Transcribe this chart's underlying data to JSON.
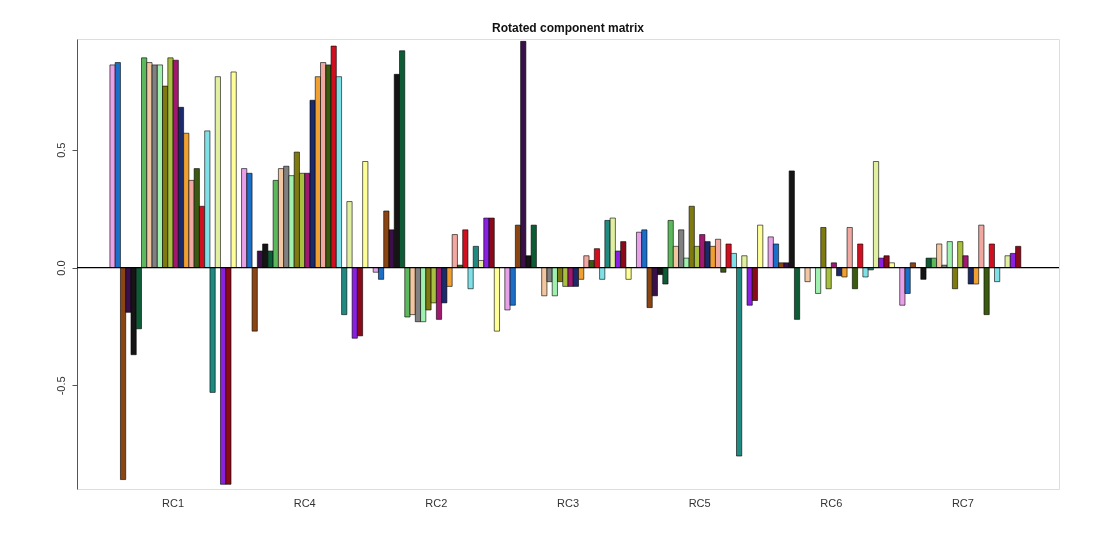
{
  "chart_data": {
    "type": "bar",
    "title": "Rotated component matrix",
    "categories": [
      "RC1",
      "RC4",
      "RC2",
      "RC3",
      "RC5",
      "RC6",
      "RC7"
    ],
    "series": [
      {
        "color": "#e8a0e8",
        "values": [
          0.86,
          0.42,
          -0.02,
          -0.18,
          0.15,
          0.13,
          -0.16
        ]
      },
      {
        "color": "#1c6fc8",
        "values": [
          0.87,
          0.4,
          -0.05,
          -0.16,
          0.16,
          0.1,
          -0.11
        ]
      },
      {
        "color": "#8b4513",
        "values": [
          -0.9,
          -0.27,
          0.24,
          0.18,
          -0.17,
          0.02,
          0.02
        ]
      },
      {
        "color": "#3a0f4a",
        "values": [
          -0.19,
          0.07,
          0.16,
          0.96,
          -0.12,
          0.02,
          0.0
        ]
      },
      {
        "color": "#151515",
        "values": [
          -0.37,
          0.1,
          0.82,
          0.05,
          -0.03,
          0.41,
          -0.05
        ]
      },
      {
        "color": "#0d5c36",
        "values": [
          -0.26,
          0.07,
          0.92,
          0.18,
          -0.07,
          -0.22,
          0.04
        ]
      },
      {
        "color": "#5cb85c",
        "values": [
          0.89,
          0.37,
          -0.21,
          0.0,
          0.2,
          0.0,
          0.04
        ]
      },
      {
        "color": "#f2c6a0",
        "values": [
          0.87,
          0.42,
          -0.2,
          -0.12,
          0.09,
          -0.06,
          0.1
        ]
      },
      {
        "color": "#808080",
        "values": [
          0.86,
          0.43,
          -0.23,
          -0.06,
          0.16,
          0.0,
          0.01
        ]
      },
      {
        "color": "#a0f0b0",
        "values": [
          0.86,
          0.39,
          -0.23,
          -0.12,
          0.04,
          -0.11,
          0.11
        ]
      },
      {
        "color": "#7f7a10",
        "values": [
          0.77,
          0.49,
          -0.18,
          -0.06,
          0.26,
          0.17,
          -0.09
        ]
      },
      {
        "color": "#a8c040",
        "values": [
          0.89,
          0.4,
          -0.15,
          -0.08,
          0.09,
          -0.09,
          0.11
        ]
      },
      {
        "color": "#a01870",
        "values": [
          0.88,
          0.4,
          -0.22,
          -0.08,
          0.14,
          0.02,
          0.05
        ]
      },
      {
        "color": "#1a2a6a",
        "values": [
          0.68,
          0.71,
          -0.15,
          -0.08,
          0.11,
          -0.035,
          -0.07
        ]
      },
      {
        "color": "#f0a030",
        "values": [
          0.57,
          0.81,
          -0.08,
          -0.05,
          0.09,
          -0.04,
          -0.07
        ]
      },
      {
        "color": "#f0a8a0",
        "values": [
          0.37,
          0.87,
          0.14,
          0.05,
          0.12,
          0.17,
          0.18
        ]
      },
      {
        "color": "#3a5a10",
        "values": [
          0.42,
          0.86,
          0.01,
          0.03,
          -0.02,
          -0.09,
          -0.2
        ]
      },
      {
        "color": "#d01020",
        "values": [
          0.26,
          0.94,
          0.16,
          0.08,
          0.1,
          0.1,
          0.1
        ]
      },
      {
        "color": "#80e0e8",
        "values": [
          0.58,
          0.81,
          -0.09,
          -0.05,
          0.06,
          -0.04,
          -0.06
        ]
      },
      {
        "color": "#208a80",
        "values": [
          -0.53,
          -0.2,
          0.09,
          0.2,
          -0.8,
          -0.01,
          0.0
        ]
      },
      {
        "color": "#e0f0a0",
        "values": [
          0.81,
          0.28,
          0.03,
          0.21,
          0.05,
          0.45,
          0.05
        ]
      },
      {
        "color": "#8a20e0",
        "values": [
          -0.92,
          -0.3,
          0.21,
          0.07,
          -0.16,
          0.04,
          0.06
        ]
      },
      {
        "color": "#8b0a1a",
        "values": [
          -0.92,
          -0.29,
          0.21,
          0.11,
          -0.14,
          0.05,
          0.09
        ]
      },
      {
        "color": "#ffff99",
        "values": [
          0.83,
          0.45,
          -0.27,
          -0.05,
          0.18,
          0.02,
          0.0
        ]
      }
    ],
    "ylim": [
      -0.94,
      0.97
    ],
    "yticks": [
      -0.5,
      {
        "value": 0,
        "label": "0.0"
      },
      0.5
    ],
    "ref_lines": [
      {
        "axis": "y",
        "value": 0,
        "color": "#000000"
      }
    ],
    "grid": false,
    "legend": false
  }
}
